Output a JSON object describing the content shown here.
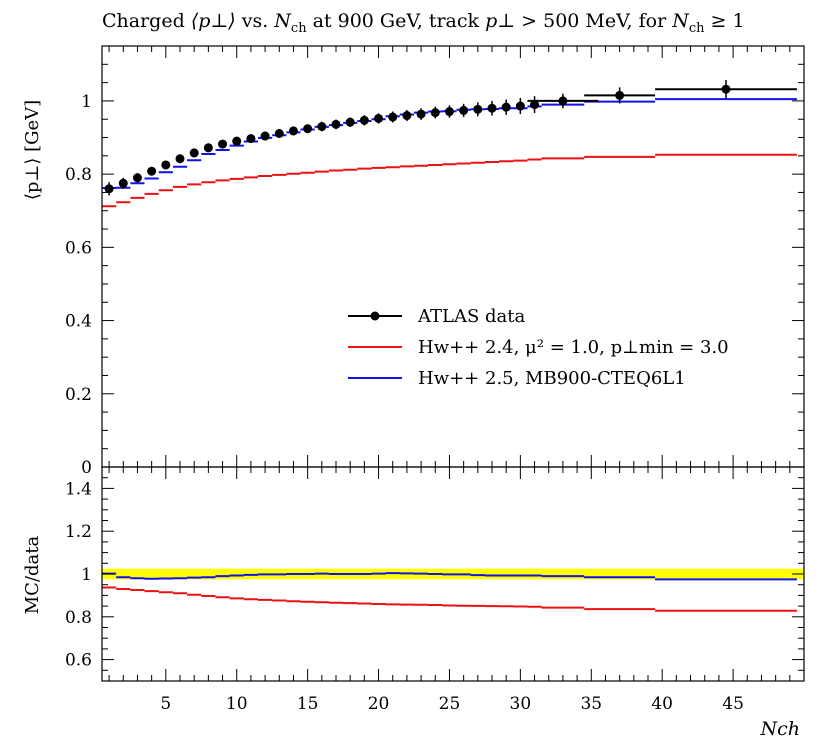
{
  "title": {
    "charged": "Charged",
    "pt_sym": "⟨p⊥⟩",
    "vs": "vs.",
    "n": "N",
    "ch": "ch",
    "energy": "at 900 GeV, track",
    "pt_cut_sym": "p⊥",
    "cut": "> 500 MeV, for",
    "n2": "N",
    "ch2": "ch",
    "nmin": "≥ 1"
  },
  "chart_data": [
    {
      "panel": "main",
      "type": "line",
      "title": "Charged ⟨p⊥⟩ vs. Nch at 900 GeV, track p⊥ > 500 MeV, for Nch ≥ 1",
      "xlabel": "Nch",
      "ylabel": "⟨p⊥⟩ [GeV]",
      "xlim": [
        0.5,
        50.0
      ],
      "ylim": [
        0,
        1.15
      ],
      "yticks": [
        "0",
        "0.2",
        "0.4",
        "0.6",
        "0.8",
        "1"
      ],
      "xticks": [
        "5",
        "10",
        "15",
        "20",
        "25",
        "30",
        "35",
        "40",
        "45"
      ],
      "legend_position": "middle-right",
      "series": [
        {
          "name": "ATLAS data",
          "color": "#000000",
          "style": "points-with-errors",
          "x": [
            1,
            2,
            3,
            4,
            5,
            6,
            7,
            8,
            9,
            10,
            11,
            12,
            13,
            14,
            15,
            16,
            17,
            18,
            19,
            20,
            21,
            22,
            23,
            24,
            25,
            26,
            27,
            28,
            29,
            30,
            31,
            33,
            37,
            44.5
          ],
          "y": [
            0.76,
            0.775,
            0.79,
            0.808,
            0.825,
            0.842,
            0.858,
            0.872,
            0.882,
            0.89,
            0.897,
            0.904,
            0.911,
            0.918,
            0.924,
            0.93,
            0.936,
            0.942,
            0.947,
            0.952,
            0.956,
            0.96,
            0.964,
            0.968,
            0.971,
            0.974,
            0.977,
            0.98,
            0.983,
            0.986,
            0.99,
            1.0,
            1.015,
            1.032
          ],
          "err": [
            0.018,
            0.015,
            0.013,
            0.012,
            0.012,
            0.012,
            0.012,
            0.012,
            0.012,
            0.012,
            0.012,
            0.012,
            0.012,
            0.012,
            0.012,
            0.013,
            0.013,
            0.013,
            0.014,
            0.014,
            0.015,
            0.015,
            0.016,
            0.016,
            0.017,
            0.018,
            0.019,
            0.02,
            0.021,
            0.022,
            0.023,
            0.02,
            0.022,
            0.025
          ],
          "xerr": [
            0,
            0,
            0,
            0,
            0,
            0,
            0,
            0,
            0,
            0,
            0,
            0,
            0,
            0,
            0,
            0,
            0,
            0,
            0,
            0,
            0,
            0,
            0,
            0,
            0,
            0,
            0,
            0,
            0,
            0,
            0,
            2.5,
            2.5,
            5.0
          ]
        },
        {
          "name": "Hw++ 2.4, μ² = 1.0, p⊥min = 3.0",
          "color": "#ee1111",
          "style": "histogram",
          "edges": [
            0.5,
            1.5,
            2.5,
            3.5,
            4.5,
            5.5,
            6.5,
            7.5,
            8.5,
            9.5,
            10.5,
            11.5,
            12.5,
            13.5,
            14.5,
            15.5,
            16.5,
            17.5,
            18.5,
            19.5,
            20.5,
            21.5,
            22.5,
            23.5,
            24.5,
            25.5,
            26.5,
            27.5,
            28.5,
            29.5,
            30.5,
            31.5,
            34.5,
            39.5,
            49.5
          ],
          "values": [
            0.712,
            0.723,
            0.735,
            0.746,
            0.756,
            0.765,
            0.772,
            0.778,
            0.783,
            0.787,
            0.791,
            0.795,
            0.798,
            0.801,
            0.804,
            0.807,
            0.81,
            0.812,
            0.815,
            0.817,
            0.819,
            0.821,
            0.823,
            0.825,
            0.827,
            0.829,
            0.831,
            0.833,
            0.835,
            0.837,
            0.84,
            0.843,
            0.847,
            0.853
          ]
        },
        {
          "name": "Hw++ 2.5, MB900-CTEQ6L1",
          "color": "#1111ee",
          "style": "histogram",
          "edges": [
            0.5,
            1.5,
            2.5,
            3.5,
            4.5,
            5.5,
            6.5,
            7.5,
            8.5,
            9.5,
            10.5,
            11.5,
            12.5,
            13.5,
            14.5,
            15.5,
            16.5,
            17.5,
            18.5,
            19.5,
            20.5,
            21.5,
            22.5,
            23.5,
            24.5,
            25.5,
            26.5,
            27.5,
            28.5,
            29.5,
            30.5,
            31.5,
            34.5,
            39.5,
            49.5
          ],
          "values": [
            0.762,
            0.763,
            0.775,
            0.788,
            0.805,
            0.82,
            0.838,
            0.855,
            0.866,
            0.878,
            0.889,
            0.899,
            0.906,
            0.914,
            0.922,
            0.929,
            0.934,
            0.94,
            0.945,
            0.95,
            0.958,
            0.963,
            0.968,
            0.971,
            0.972,
            0.976,
            0.977,
            0.978,
            0.98,
            0.98,
            0.985,
            0.99,
            0.998,
            1.005
          ]
        }
      ]
    },
    {
      "panel": "ratio",
      "type": "line",
      "ylabel": "MC/data",
      "xlabel": "Nch",
      "xlim": [
        0.5,
        50.0
      ],
      "ylim": [
        0.5,
        1.5
      ],
      "yticks": [
        "0.6",
        "0.8",
        "1",
        "1.2",
        "1.4"
      ],
      "xticks": [
        "5",
        "10",
        "15",
        "20",
        "25",
        "30",
        "35",
        "40",
        "45"
      ],
      "band_color": "#ffff00",
      "band_halfwidth": 0.025,
      "series": [
        {
          "name": "Hw++ 2.4, μ² = 1.0, p⊥min = 3.0",
          "color": "#ee1111",
          "edges": [
            0.5,
            1.5,
            2.5,
            3.5,
            4.5,
            5.5,
            6.5,
            7.5,
            8.5,
            9.5,
            10.5,
            11.5,
            12.5,
            13.5,
            14.5,
            15.5,
            16.5,
            17.5,
            18.5,
            19.5,
            20.5,
            21.5,
            22.5,
            23.5,
            24.5,
            25.5,
            26.5,
            27.5,
            28.5,
            29.5,
            30.5,
            31.5,
            34.5,
            39.5,
            49.5
          ],
          "values": [
            0.937,
            0.93,
            0.925,
            0.92,
            0.915,
            0.91,
            0.903,
            0.897,
            0.891,
            0.886,
            0.882,
            0.879,
            0.876,
            0.873,
            0.87,
            0.868,
            0.866,
            0.864,
            0.862,
            0.86,
            0.858,
            0.857,
            0.856,
            0.855,
            0.853,
            0.852,
            0.851,
            0.85,
            0.849,
            0.848,
            0.847,
            0.843,
            0.836,
            0.828
          ]
        },
        {
          "name": "Hw++ 2.5, MB900-CTEQ6L1",
          "color": "#1111ee",
          "edges": [
            0.5,
            1.5,
            2.5,
            3.5,
            4.5,
            5.5,
            6.5,
            7.5,
            8.5,
            9.5,
            10.5,
            11.5,
            12.5,
            13.5,
            14.5,
            15.5,
            16.5,
            17.5,
            18.5,
            19.5,
            20.5,
            21.5,
            22.5,
            23.5,
            24.5,
            25.5,
            26.5,
            27.5,
            28.5,
            29.5,
            30.5,
            31.5,
            34.5,
            39.5,
            49.5
          ],
          "values": [
            1.002,
            0.985,
            0.98,
            0.978,
            0.979,
            0.98,
            0.983,
            0.985,
            0.99,
            0.993,
            0.996,
            0.998,
            0.998,
            1.0,
            1.0,
            1.002,
            1.0,
            1.0,
            1.0,
            1.002,
            1.004,
            1.003,
            1.002,
            1.0,
            0.998,
            0.998,
            0.995,
            0.993,
            0.993,
            0.993,
            0.993,
            0.99,
            0.985,
            0.975
          ]
        }
      ]
    }
  ]
}
